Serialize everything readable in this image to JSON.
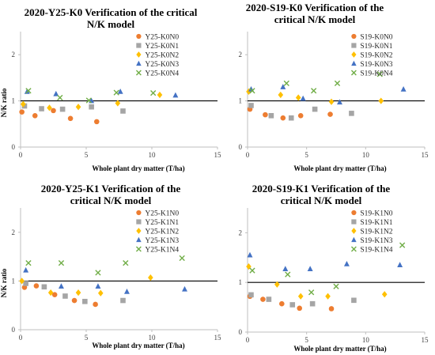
{
  "figure": {
    "background": "#ffffff"
  },
  "chart_data": [
    {
      "type": "scatter",
      "title_lines": [
        "2020-Y25-K0 Verification of the critical",
        "N/K model"
      ],
      "xlabel": "Whole plant dry matter  (T/ha)",
      "ylabel": "N/K ratio",
      "xlim": [
        0,
        15
      ],
      "ylim": [
        0,
        2.5
      ],
      "xticks": [
        0,
        5,
        10,
        15
      ],
      "yticks": [
        0,
        1,
        2
      ],
      "reference_line": 1,
      "grid": false,
      "legend_position": "inside-top-right",
      "series": [
        {
          "name": "Y25-K0N0",
          "marker": "circle",
          "color": "#ed7d31",
          "points": [
            [
              0.1,
              0.76
            ],
            [
              1.1,
              0.68
            ],
            [
              2.5,
              0.79
            ],
            [
              3.8,
              0.62
            ],
            [
              5.8,
              0.55
            ]
          ]
        },
        {
          "name": "Y25-K0N1",
          "marker": "square",
          "color": "#a5a5a5",
          "points": [
            [
              0.3,
              0.89
            ],
            [
              1.6,
              0.83
            ],
            [
              3.2,
              0.82
            ],
            [
              5.4,
              0.87
            ],
            [
              7.8,
              0.78
            ]
          ]
        },
        {
          "name": "Y25-K0N2",
          "marker": "diamond",
          "color": "#ffc000",
          "points": [
            [
              0.2,
              0.93
            ],
            [
              2.2,
              0.85
            ],
            [
              4.4,
              0.87
            ],
            [
              7.4,
              0.95
            ],
            [
              10.6,
              1.13
            ]
          ]
        },
        {
          "name": "Y25-K0N3",
          "marker": "triangle",
          "color": "#4472c4",
          "points": [
            [
              0.5,
              1.2
            ],
            [
              2.7,
              1.15
            ],
            [
              5.4,
              1.0
            ],
            [
              7.6,
              1.2
            ],
            [
              11.8,
              1.12
            ]
          ]
        },
        {
          "name": "Y25-K0N4",
          "marker": "cross",
          "color": "#70ad47",
          "points": [
            [
              0.6,
              1.22
            ],
            [
              3.0,
              1.07
            ],
            [
              5.2,
              1.01
            ],
            [
              7.3,
              1.18
            ],
            [
              10.1,
              1.17
            ]
          ]
        }
      ]
    },
    {
      "type": "scatter",
      "title_lines": [
        "2020-S19-K0 Verification of the",
        "critical N/K model"
      ],
      "xlabel": "Whole plant dry matter  (T/ha)",
      "ylabel": "",
      "xlim": [
        0,
        15
      ],
      "ylim": [
        0,
        2.5
      ],
      "xticks": [
        0,
        5,
        10,
        15
      ],
      "yticks": [
        0,
        1,
        2
      ],
      "reference_line": 1,
      "grid": false,
      "legend_position": "inside-top-right",
      "series": [
        {
          "name": "S19-K0N0",
          "marker": "circle",
          "color": "#ed7d31",
          "points": [
            [
              0.2,
              0.82
            ],
            [
              1.5,
              0.7
            ],
            [
              3.0,
              0.63
            ],
            [
              4.5,
              0.68
            ],
            [
              7.0,
              0.71
            ]
          ]
        },
        {
          "name": "S19-K0N1",
          "marker": "square",
          "color": "#a5a5a5",
          "points": [
            [
              0.3,
              0.9
            ],
            [
              2.0,
              0.68
            ],
            [
              3.7,
              0.63
            ],
            [
              5.7,
              0.82
            ],
            [
              8.8,
              0.73
            ]
          ]
        },
        {
          "name": "S19-K0N2",
          "marker": "diamond",
          "color": "#ffc000",
          "points": [
            [
              0.1,
              1.2
            ],
            [
              2.8,
              1.13
            ],
            [
              4.3,
              1.07
            ],
            [
              7.1,
              0.98
            ],
            [
              11.3,
              1.0
            ]
          ]
        },
        {
          "name": "S19-K0N3",
          "marker": "triangle",
          "color": "#4472c4",
          "points": [
            [
              0.3,
              1.25
            ],
            [
              3.0,
              1.3
            ],
            [
              4.7,
              1.05
            ],
            [
              7.8,
              0.97
            ],
            [
              13.2,
              1.25
            ]
          ]
        },
        {
          "name": "S19-K0N4",
          "marker": "cross",
          "color": "#70ad47",
          "points": [
            [
              0.4,
              1.22
            ],
            [
              3.3,
              1.38
            ],
            [
              5.6,
              1.22
            ],
            [
              7.6,
              1.38
            ],
            [
              11.2,
              1.58
            ]
          ]
        }
      ]
    },
    {
      "type": "scatter",
      "title_lines": [
        "2020-Y25-K1 Verification of the",
        "critical N/K model"
      ],
      "xlabel": "Whole plant dry matter  (T/ha)",
      "ylabel": "N/K ratio",
      "xlim": [
        0,
        15
      ],
      "ylim": [
        0,
        2.5
      ],
      "xticks": [
        0,
        5,
        10,
        15
      ],
      "yticks": [
        0,
        1,
        2
      ],
      "reference_line": 1,
      "grid": false,
      "legend_position": "inside-top-right",
      "series": [
        {
          "name": "Y25-K1N0",
          "marker": "circle",
          "color": "#ed7d31",
          "points": [
            [
              0.3,
              0.87
            ],
            [
              1.2,
              0.9
            ],
            [
              2.6,
              0.72
            ],
            [
              4.1,
              0.6
            ],
            [
              5.7,
              0.52
            ]
          ]
        },
        {
          "name": "Y25-K1N1",
          "marker": "square",
          "color": "#a5a5a5",
          "points": [
            [
              0.4,
              0.95
            ],
            [
              1.8,
              0.88
            ],
            [
              3.4,
              0.69
            ],
            [
              4.9,
              0.58
            ],
            [
              7.8,
              0.6
            ]
          ]
        },
        {
          "name": "Y25-K1N2",
          "marker": "diamond",
          "color": "#ffc000",
          "points": [
            [
              0.1,
              1.0
            ],
            [
              2.3,
              0.76
            ],
            [
              4.4,
              0.76
            ],
            [
              6.1,
              0.75
            ],
            [
              9.9,
              1.07
            ]
          ]
        },
        {
          "name": "Y25-K1N3",
          "marker": "triangle",
          "color": "#4472c4",
          "points": [
            [
              0.4,
              1.22
            ],
            [
              3.1,
              0.89
            ],
            [
              5.9,
              0.89
            ],
            [
              8.1,
              0.78
            ],
            [
              12.5,
              0.83
            ]
          ]
        },
        {
          "name": "Y25-K1N4",
          "marker": "cross",
          "color": "#70ad47",
          "points": [
            [
              0.6,
              1.37
            ],
            [
              3.1,
              1.37
            ],
            [
              5.9,
              1.17
            ],
            [
              8.0,
              1.37
            ],
            [
              12.3,
              1.47
            ]
          ]
        }
      ]
    },
    {
      "type": "scatter",
      "title_lines": [
        "2020-S19-K1 Verification of the",
        "critical N/K model"
      ],
      "xlabel": "Whole plant dry matter  (T/ha)",
      "ylabel": "",
      "xlim": [
        0,
        15
      ],
      "ylim": [
        0,
        2.5
      ],
      "xticks": [
        0,
        5,
        10,
        15
      ],
      "yticks": [
        0,
        1,
        2
      ],
      "reference_line": 1,
      "grid": false,
      "legend_position": "inside-top-right",
      "series": [
        {
          "name": "S19-K1N0",
          "marker": "circle",
          "color": "#ed7d31",
          "points": [
            [
              0.2,
              0.72
            ],
            [
              1.3,
              0.66
            ],
            [
              2.9,
              0.57
            ],
            [
              4.4,
              0.48
            ],
            [
              7.1,
              0.47
            ]
          ]
        },
        {
          "name": "S19-K1N1",
          "marker": "square",
          "color": "#a5a5a5",
          "points": [
            [
              0.3,
              0.75
            ],
            [
              1.8,
              0.66
            ],
            [
              3.8,
              0.55
            ],
            [
              5.5,
              0.57
            ],
            [
              9.0,
              0.64
            ]
          ]
        },
        {
          "name": "S19-K1N2",
          "marker": "diamond",
          "color": "#ffc000",
          "points": [
            [
              0.1,
              1.32
            ],
            [
              2.5,
              0.96
            ],
            [
              4.5,
              0.72
            ],
            [
              6.8,
              0.72
            ],
            [
              11.6,
              0.76
            ]
          ]
        },
        {
          "name": "S19-K1N3",
          "marker": "triangle",
          "color": "#4472c4",
          "points": [
            [
              0.2,
              1.55
            ],
            [
              3.2,
              1.27
            ],
            [
              5.3,
              1.27
            ],
            [
              8.4,
              1.37
            ],
            [
              12.9,
              1.35
            ]
          ]
        },
        {
          "name": "S19-K1N4",
          "marker": "cross",
          "color": "#70ad47",
          "points": [
            [
              0.4,
              1.24
            ],
            [
              3.4,
              1.16
            ],
            [
              5.4,
              0.8
            ],
            [
              7.5,
              0.92
            ],
            [
              13.1,
              1.75
            ]
          ]
        }
      ]
    }
  ]
}
